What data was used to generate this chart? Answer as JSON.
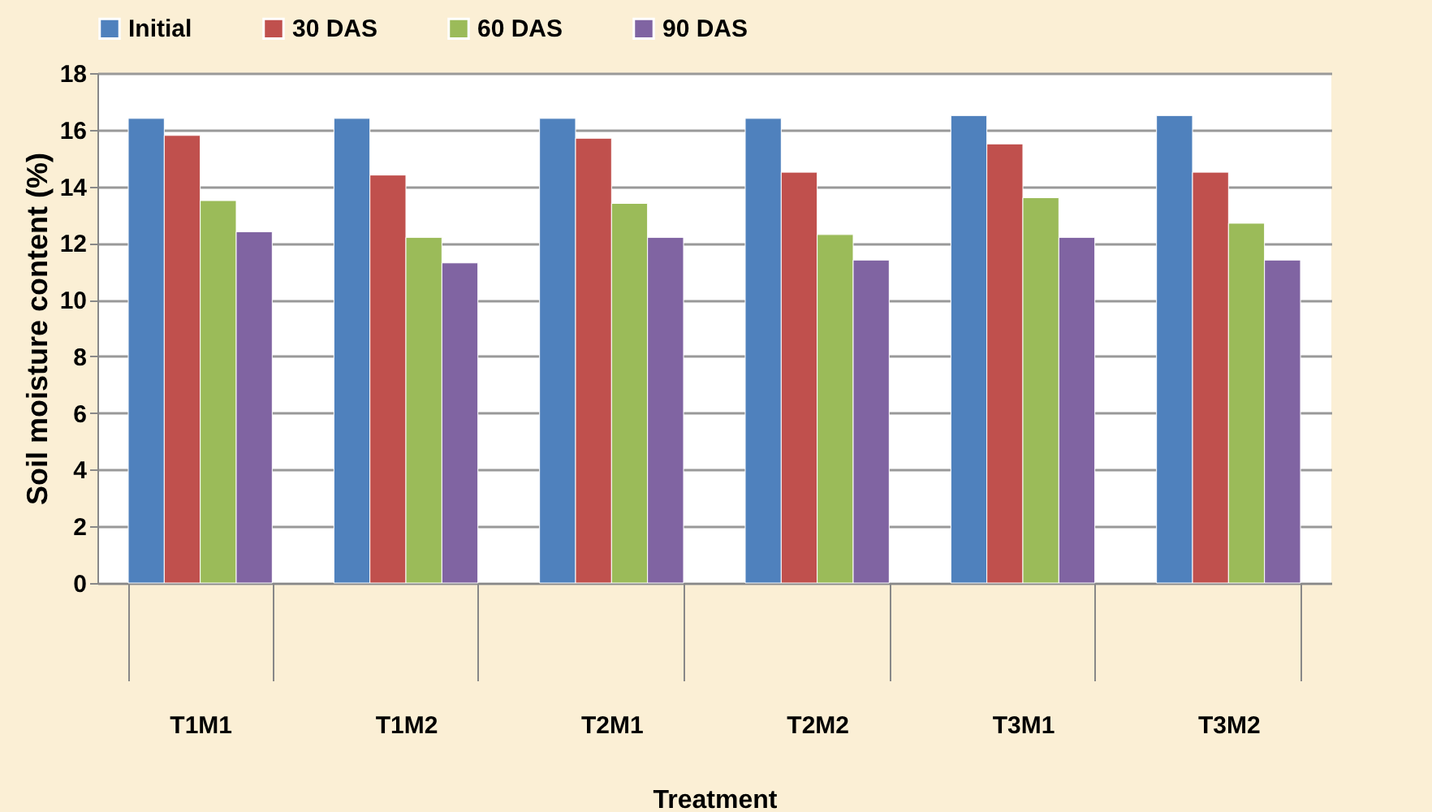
{
  "chart_data": {
    "type": "bar",
    "xlabel": "Treatment",
    "ylabel": "Soil moisture content (%)",
    "categories": [
      "T1M1",
      "T1M2",
      "T2M1",
      "T2M2",
      "T3M1",
      "T3M2"
    ],
    "series": [
      {
        "name": "Initial",
        "color": "#4f81bd",
        "values": [
          16.4,
          16.4,
          16.4,
          16.4,
          16.5,
          16.5
        ]
      },
      {
        "name": "30 DAS",
        "color": "#c0504d",
        "values": [
          15.8,
          14.4,
          15.7,
          14.5,
          15.5,
          14.5
        ]
      },
      {
        "name": "60 DAS",
        "color": "#9bbb59",
        "values": [
          13.5,
          12.2,
          13.4,
          12.3,
          13.6,
          12.7
        ]
      },
      {
        "name": "90 DAS",
        "color": "#8064a2",
        "values": [
          12.4,
          11.3,
          12.2,
          11.4,
          12.2,
          11.4
        ]
      }
    ],
    "ylim": [
      0,
      18
    ],
    "yticks": [
      0,
      2,
      4,
      6,
      8,
      10,
      12,
      14,
      16,
      18
    ],
    "grid": "y",
    "legend": "top"
  }
}
